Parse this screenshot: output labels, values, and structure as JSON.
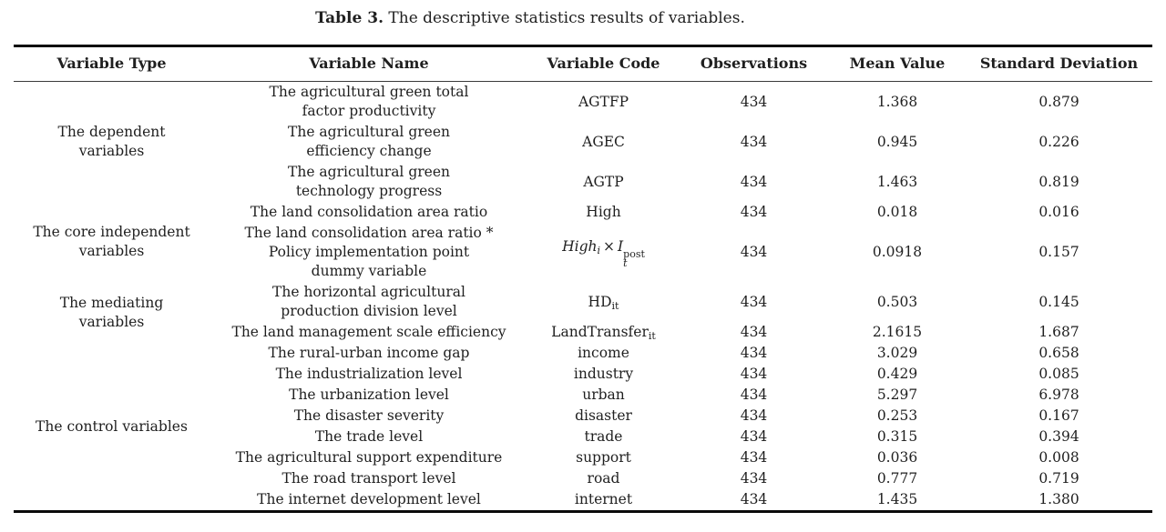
{
  "caption": {
    "label": "Table 3.",
    "text": "The descriptive statistics results of variables."
  },
  "table": {
    "headers": {
      "variable_type": "Variable Type",
      "variable_name": "Variable Name",
      "variable_code": "Variable Code",
      "observations": "Observations",
      "mean_value": "Mean Value",
      "standard_deviation": "Standard Deviation"
    },
    "groups": [
      {
        "label": "The dependent\nvariables"
      },
      {
        "label": "The core independent\nvariables"
      },
      {
        "label": "The mediating\nvariables"
      },
      {
        "label": "The control variables"
      }
    ],
    "rows": [
      {
        "name": "The agricultural green total\nfactor productivity",
        "code": "AGTFP",
        "observations": "434",
        "mean": "1.368",
        "sd": "0.879"
      },
      {
        "name": "The agricultural green\nefficiency change",
        "code": "AGEC",
        "observations": "434",
        "mean": "0.945",
        "sd": "0.226"
      },
      {
        "name": "The agricultural green\ntechnology progress",
        "code": "AGTP",
        "observations": "434",
        "mean": "1.463",
        "sd": "0.819"
      },
      {
        "name": "The land consolidation area ratio",
        "code": "High",
        "observations": "434",
        "mean": "0.018",
        "sd": "0.016"
      },
      {
        "name": "The land consolidation area ratio *\nPolicy implementation point\ndummy variable",
        "code_math": {
          "base1": "High",
          "sub1": "i",
          "op": "×",
          "base2": "I",
          "sup2": "post",
          "sub2": "t"
        },
        "observations": "434",
        "mean": "0.0918",
        "sd": "0.157"
      },
      {
        "name": "The horizontal agricultural\nproduction division level",
        "code_main": "HD",
        "code_sub": "it",
        "observations": "434",
        "mean": "0.503",
        "sd": "0.145"
      },
      {
        "name": "The land management scale efficiency",
        "code_main": "LandTransfer",
        "code_sub": "it",
        "observations": "434",
        "mean": "2.1615",
        "sd": "1.687"
      },
      {
        "name": "The rural-urban income gap",
        "code": "income",
        "observations": "434",
        "mean": "3.029",
        "sd": "0.658"
      },
      {
        "name": "The industrialization level",
        "code": "industry",
        "observations": "434",
        "mean": "0.429",
        "sd": "0.085"
      },
      {
        "name": "The urbanization level",
        "code": "urban",
        "observations": "434",
        "mean": "5.297",
        "sd": "6.978"
      },
      {
        "name": "The disaster severity",
        "code": "disaster",
        "observations": "434",
        "mean": "0.253",
        "sd": "0.167"
      },
      {
        "name": "The trade level",
        "code": "trade",
        "observations": "434",
        "mean": "0.315",
        "sd": "0.394"
      },
      {
        "name": "The agricultural support expenditure",
        "code": "support",
        "observations": "434",
        "mean": "0.036",
        "sd": "0.008"
      },
      {
        "name": "The road transport level",
        "code": "road",
        "observations": "434",
        "mean": "0.777",
        "sd": "0.719"
      },
      {
        "name": "The internet development level",
        "code": "internet",
        "observations": "434",
        "mean": "1.435",
        "sd": "1.380"
      }
    ]
  }
}
